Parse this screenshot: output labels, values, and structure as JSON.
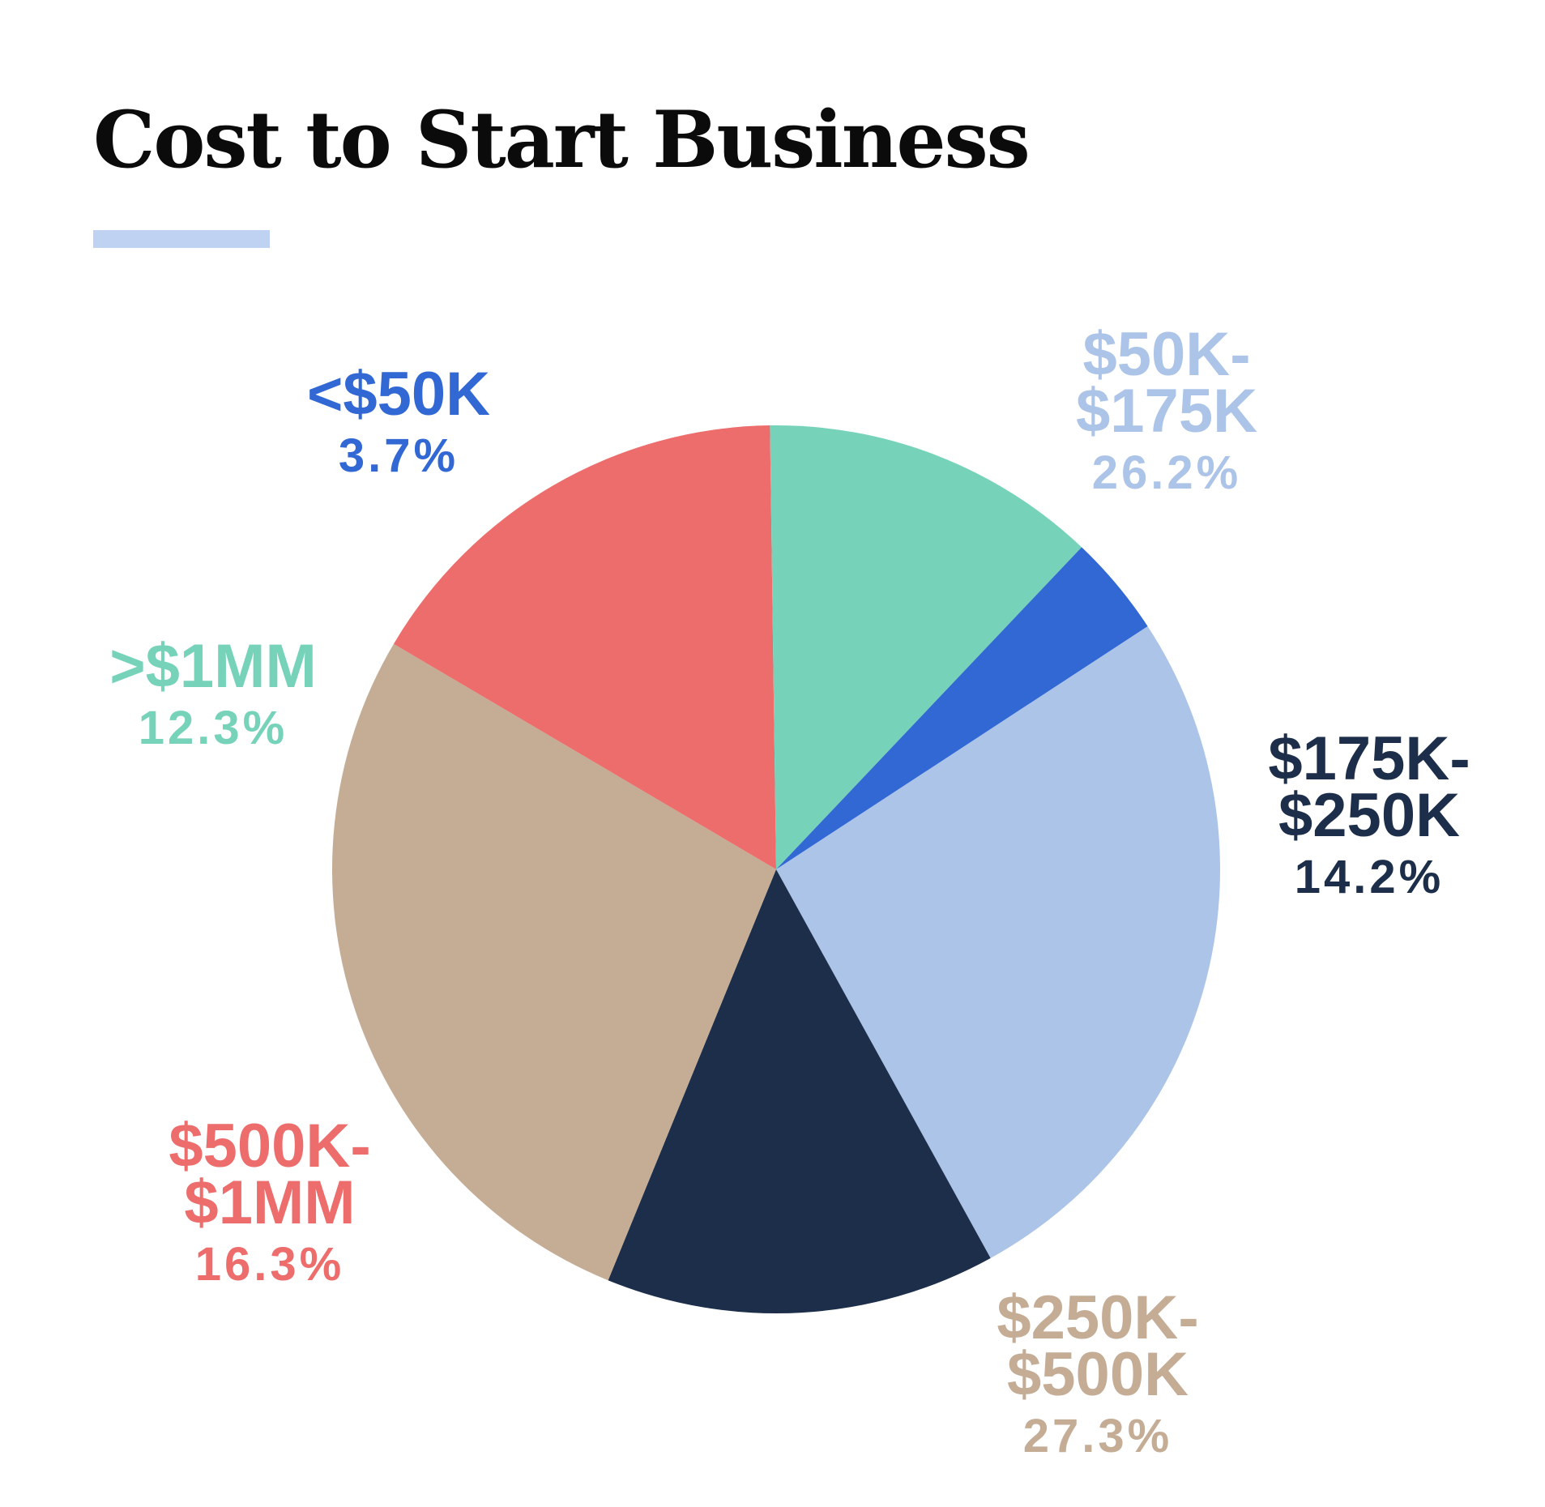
{
  "chart_data": {
    "type": "pie",
    "title": "Cost to Start Business",
    "accent_rule_color": "#bfd2f1",
    "slices": [
      {
        "category_lines": [
          "$50K-",
          "$175K"
        ],
        "value": 26.2,
        "pct_label": "26.2%",
        "color": "#abc4e8"
      },
      {
        "category_lines": [
          "$175K-",
          "$250K"
        ],
        "value": 14.2,
        "pct_label": "14.2%",
        "color": "#1c2e4a"
      },
      {
        "category_lines": [
          "$250K-",
          "$500K"
        ],
        "value": 27.3,
        "pct_label": "27.3%",
        "color": "#c4ac95"
      },
      {
        "category_lines": [
          "$500K-",
          "$1MM"
        ],
        "value": 16.3,
        "pct_label": "16.3%",
        "color": "#ec6d6b"
      },
      {
        "category_lines": [
          ">$1MM"
        ],
        "value": 12.3,
        "pct_label": "12.3%",
        "color": "#76d3b9"
      },
      {
        "category_lines": [
          "<$50K"
        ],
        "value": 3.7,
        "pct_label": "3.7%",
        "color": "#3268d4"
      }
    ]
  }
}
